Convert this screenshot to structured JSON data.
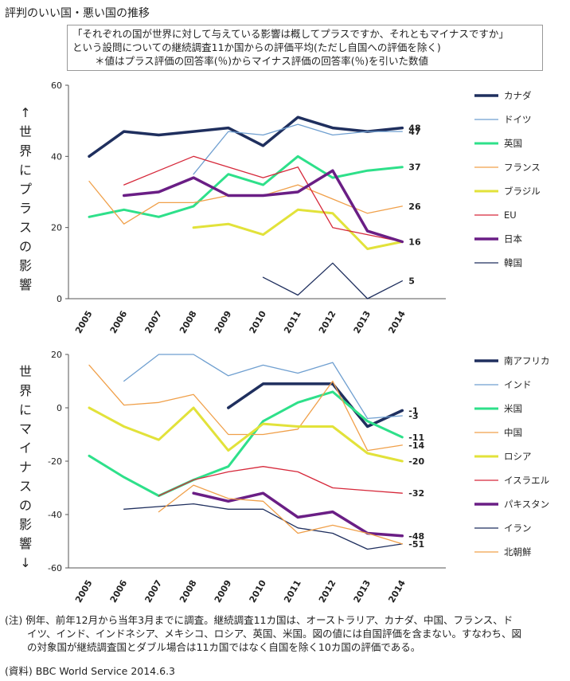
{
  "title": "評判のいい国・悪い国の推移",
  "question": [
    "「それぞれの国が世界に対して与えている影響は概してプラスですか、それともマイナスですか」",
    "という設問についての継続調査11か国からの評価平均(ただし自国への評価を除く)",
    "＊値はプラス評価の回答率(％)からマイナス評価の回答率(％)を引いた数値"
  ],
  "note": [
    "(注) 例年、前年12月から当年3月までに調査。継続調査11カ国は、オーストラリア、カナダ、中国、フランス、ド",
    "イツ、インド、インドネシア、メキシコ、ロシア、英国、米国。図の値には自国評価を含まない。すなわち、図",
    "の対象国が継続調査国とダブル場合は11カ国ではなく自国を除く10カ国の評価である。"
  ],
  "source": "(資料) BBC World Service 2014.6.3",
  "chart_data": [
    {
      "type": "line",
      "ylabel": "↑世界にプラスの影響",
      "x": [
        "2005",
        "2006",
        "2007",
        "2008",
        "2009",
        "2010",
        "2011",
        "2012",
        "2013",
        "2014"
      ],
      "ylim": [
        0,
        60
      ],
      "yticks": [
        "0",
        "20",
        "40",
        "60"
      ],
      "series": [
        {
          "name": "カナダ",
          "color": "#1f2f5e",
          "width": 3.5,
          "values": [
            40,
            47,
            46,
            47,
            48,
            43,
            51,
            48,
            47,
            48
          ],
          "end_label": "48"
        },
        {
          "name": "ドイツ",
          "color": "#6f9fd0",
          "width": 1.3,
          "values": [
            null,
            null,
            null,
            35,
            47,
            46,
            49,
            46,
            47,
            47
          ],
          "end_label": "47"
        },
        {
          "name": "英国",
          "color": "#2ee08a",
          "width": 3.0,
          "values": [
            23,
            25,
            23,
            26,
            35,
            32,
            40,
            34,
            36,
            37
          ],
          "end_label": "37"
        },
        {
          "name": "フランス",
          "color": "#f0a04a",
          "width": 1.3,
          "values": [
            33,
            21,
            27,
            27,
            29,
            29,
            32,
            28,
            24,
            26
          ],
          "end_label": "26"
        },
        {
          "name": "ブラジル",
          "color": "#e2e23a",
          "width": 3.0,
          "values": [
            null,
            null,
            null,
            20,
            21,
            18,
            25,
            24,
            14,
            16
          ],
          "end_label": ""
        },
        {
          "name": "EU",
          "color": "#d6283a",
          "width": 1.3,
          "values": [
            null,
            32,
            36,
            40,
            37,
            34,
            37,
            20,
            18,
            16
          ],
          "end_label": ""
        },
        {
          "name": "日本",
          "color": "#6a1e85",
          "width": 3.5,
          "values": [
            null,
            29,
            30,
            34,
            29,
            29,
            30,
            36,
            19,
            16
          ],
          "end_label": "16"
        },
        {
          "name": "韓国",
          "color": "#1f2f5e",
          "width": 1.3,
          "values": [
            null,
            null,
            null,
            null,
            null,
            6,
            1,
            10,
            0,
            5
          ],
          "end_label": "5"
        }
      ]
    },
    {
      "type": "line",
      "ylabel": "世界にマイナスの影響↓",
      "x": [
        "2005",
        "2006",
        "2007",
        "2008",
        "2009",
        "2010",
        "2011",
        "2012",
        "2013",
        "2014"
      ],
      "ylim": [
        -60,
        20
      ],
      "yticks": [
        "-60",
        "-40",
        "-20",
        "0",
        "20"
      ],
      "series": [
        {
          "name": "南アフリカ",
          "color": "#1f2f5e",
          "width": 3.5,
          "values": [
            null,
            null,
            null,
            null,
            0,
            9,
            9,
            9,
            -7,
            -1
          ],
          "end_label": "-1"
        },
        {
          "name": "インド",
          "color": "#6f9fd0",
          "width": 1.3,
          "values": [
            null,
            10,
            20,
            20,
            12,
            16,
            13,
            17,
            -4,
            -3
          ],
          "end_label": "-3"
        },
        {
          "name": "米国",
          "color": "#2ee08a",
          "width": 3.0,
          "values": [
            -18,
            -26,
            -33,
            -27,
            -22,
            -5,
            2,
            6,
            -5,
            -11
          ],
          "end_label": "-11"
        },
        {
          "name": "中国",
          "color": "#f0a04a",
          "width": 1.3,
          "values": [
            16,
            1,
            2,
            5,
            -10,
            -10,
            -8,
            10,
            -16,
            -14
          ],
          "end_label": "-14"
        },
        {
          "name": "ロシア",
          "color": "#e2e23a",
          "width": 3.0,
          "values": [
            0,
            -7,
            -12,
            0,
            -16,
            -6,
            -7,
            -7,
            -17,
            -20
          ],
          "end_label": "-20"
        },
        {
          "name": "イスラエル",
          "color": "#d6283a",
          "width": 1.3,
          "values": [
            null,
            null,
            -33,
            -27,
            -24,
            -22,
            -24,
            -30,
            -31,
            -32
          ],
          "end_label": "-32"
        },
        {
          "name": "パキスタン",
          "color": "#6a1e85",
          "width": 3.5,
          "values": [
            null,
            null,
            null,
            -32,
            -35,
            -32,
            -41,
            -39,
            -47,
            -48
          ],
          "end_label": "-48"
        },
        {
          "name": "イラン",
          "color": "#1f2f5e",
          "width": 1.3,
          "values": [
            null,
            -38,
            -37,
            -36,
            -38,
            -38,
            -45,
            -47,
            -53,
            -51
          ],
          "end_label": "-51"
        },
        {
          "name": "北朝鮮",
          "color": "#f0a04a",
          "width": 1.3,
          "values": [
            null,
            null,
            -39,
            -29,
            -34,
            -35,
            -47,
            -44,
            -47,
            -51
          ],
          "end_label": ""
        }
      ]
    }
  ]
}
